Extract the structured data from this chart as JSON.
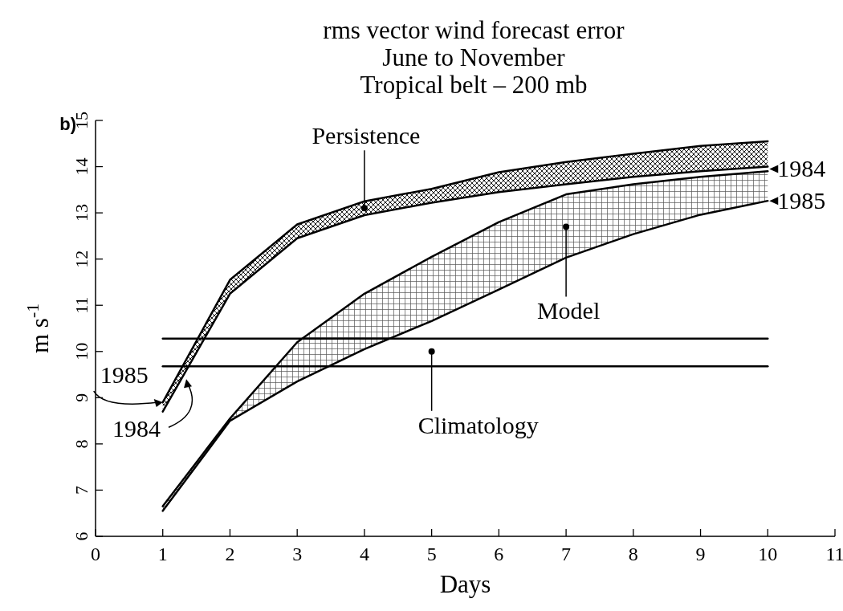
{
  "chart_data": {
    "type": "line",
    "title": "rms vector wind forecast error\nJune to November\nTropical belt  –  200 mb",
    "xlabel": "Days",
    "ylabel": "m s$^{-1}$",
    "x": [
      1,
      2,
      3,
      4,
      5,
      6,
      7,
      8,
      9,
      10
    ],
    "series": [
      {
        "color": "#000000",
        "values": [
          8.9,
          11.55,
          12.75,
          13.25,
          13.52,
          13.88,
          14.1,
          14.28,
          14.45,
          14.55
        ],
        "lower": [
          8.7,
          11.25,
          12.45,
          12.95,
          13.22,
          13.45,
          13.62,
          13.78,
          13.9,
          14.0
        ],
        "upper": [
          8.9,
          11.55,
          12.75,
          13.25,
          13.52,
          13.88,
          14.1,
          14.28,
          14.45,
          14.55
        ]
      },
      {
        "color": "#000000",
        "values": [
          8.7,
          11.25,
          12.45,
          12.95,
          13.22,
          13.45,
          13.62,
          13.78,
          13.9,
          14.0
        ]
      },
      {
        "color": "#000000",
        "values": [
          6.65,
          8.55,
          10.2,
          11.25,
          12.05,
          12.8,
          13.4,
          13.62,
          13.78,
          13.9
        ],
        "lower": [
          6.55,
          8.5,
          9.35,
          10.05,
          10.66,
          11.34,
          12.03,
          12.54,
          12.96,
          13.26
        ],
        "upper": [
          6.65,
          8.55,
          10.2,
          11.25,
          12.05,
          12.8,
          13.4,
          13.62,
          13.78,
          13.9
        ]
      },
      {
        "color": "#000000",
        "values": [
          6.55,
          8.5,
          9.35,
          10.05,
          10.66,
          11.34,
          12.03,
          12.54,
          12.96,
          13.26
        ]
      },
      {
        "color": "#000000",
        "values": [
          10.28,
          10.28,
          10.28,
          10.28,
          10.28,
          10.28,
          10.28,
          10.28,
          10.28,
          10.28
        ]
      },
      {
        "color": "#000000",
        "values": [
          9.68,
          9.68,
          9.68,
          9.68,
          9.68,
          9.68,
          9.68,
          9.68,
          9.68,
          9.68
        ]
      }
    ],
    "annotations": [
      "b)",
      {
        "text": "Persistence",
        "x": 4,
        "y": 13.1
      },
      {
        "text": "Model",
        "x": 7,
        "y": 12.7
      },
      {
        "text": "Climatology",
        "x": 5,
        "y": 10.0
      },
      {
        "text": "1984",
        "x": 10,
        "y": 13.95
      },
      {
        "text": "1985",
        "x": 10,
        "y": 13.26
      },
      {
        "text": "1985",
        "x": 1,
        "y": 8.9
      },
      {
        "text": "1984",
        "x": 1.35,
        "y": 9.4
      }
    ],
    "xlim": [
      0,
      11
    ],
    "xticks": [
      0,
      1,
      2,
      3,
      4,
      5,
      6,
      7,
      8,
      9,
      10,
      11
    ],
    "ylim": [
      6,
      15
    ],
    "yticks": [
      6,
      7,
      8,
      9,
      10,
      11,
      12,
      13,
      14,
      15
    ],
    "grid": false
  }
}
